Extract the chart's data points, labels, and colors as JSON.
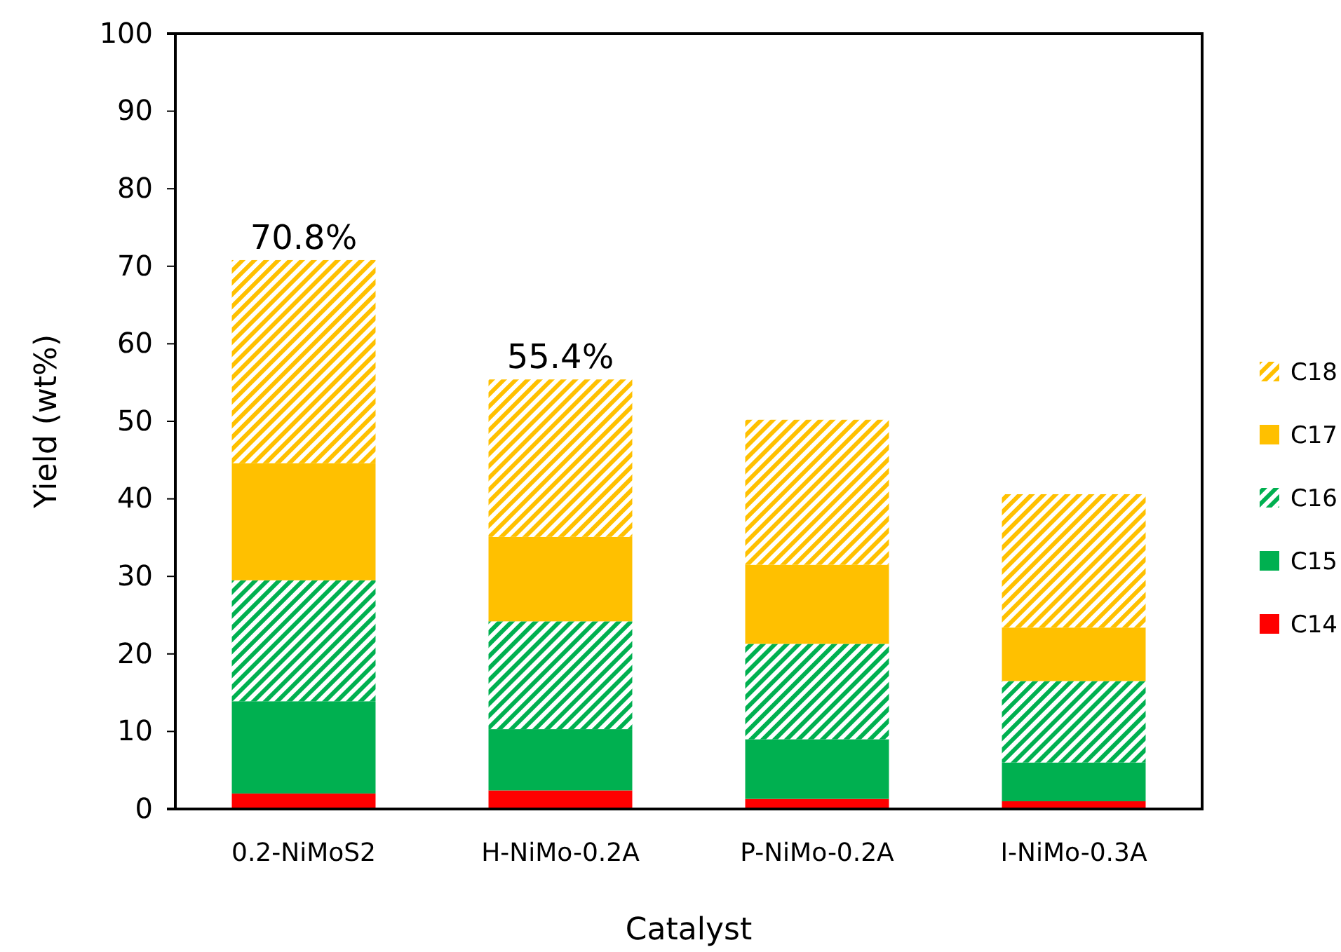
{
  "chart_data": {
    "type": "bar",
    "stacked": true,
    "xlabel": "Catalyst",
    "ylabel": "Yield (wt%)",
    "categories": [
      "0.2-NiMoS2",
      "H-NiMo-0.2A",
      "P-NiMo-0.2A",
      "I-NiMo-0.3A"
    ],
    "series": [
      {
        "name": "C14",
        "color": "#ff0000",
        "values": [
          2.0,
          2.4,
          1.3,
          1.0
        ]
      },
      {
        "name": "C15",
        "color": "#00b050",
        "values": [
          11.9,
          7.9,
          7.7,
          5.0
        ]
      },
      {
        "name": "C16",
        "color": "#00b050",
        "values": [
          15.6,
          13.9,
          12.3,
          10.5
        ]
      },
      {
        "name": "C17",
        "color": "#ffc000",
        "values": [
          15.1,
          10.9,
          10.2,
          6.9
        ]
      },
      {
        "name": "C18",
        "color": "#ffc000",
        "values": [
          26.2,
          20.3,
          18.7,
          17.2
        ]
      }
    ],
    "totals": [
      "70.8%",
      "55.4%",
      null,
      null
    ],
    "ylim": [
      0,
      100
    ],
    "yticks": [
      0,
      10,
      20,
      30,
      40,
      50,
      60,
      70,
      80,
      90,
      100
    ],
    "grid": false,
    "legend": "right"
  }
}
